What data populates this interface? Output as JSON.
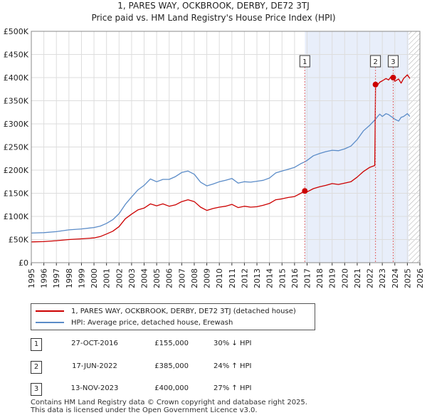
{
  "title_line1": "1, PARES WAY, OCKBROOK, DERBY, DE72 3TJ",
  "title_line2": "Price paid vs. HM Land Registry's House Price Index (HPI)",
  "chart_data": {
    "type": "line",
    "title": "Price paid vs. HM Land Registry's House Price Index (HPI)",
    "xlabel": "",
    "ylabel": "",
    "xlim": [
      1995,
      2026
    ],
    "ylim": [
      0,
      500000
    ],
    "y_ticks": [
      0,
      50000,
      100000,
      150000,
      200000,
      250000,
      300000,
      350000,
      400000,
      450000,
      500000
    ],
    "y_tick_labels": [
      "£0",
      "£50K",
      "£100K",
      "£150K",
      "£200K",
      "£250K",
      "£300K",
      "£350K",
      "£400K",
      "£450K",
      "£500K"
    ],
    "x_ticks": [
      1995,
      1996,
      1997,
      1998,
      1999,
      2000,
      2001,
      2002,
      2003,
      2004,
      2005,
      2006,
      2007,
      2008,
      2009,
      2010,
      2011,
      2012,
      2013,
      2014,
      2015,
      2016,
      2017,
      2018,
      2019,
      2020,
      2021,
      2022,
      2023,
      2024,
      2025,
      2026
    ],
    "x_tick_labels": [
      "1995",
      "1996",
      "1997",
      "1998",
      "1999",
      "2000",
      "2001",
      "2002",
      "2003",
      "2004",
      "2005",
      "2006",
      "2007",
      "2008",
      "2009",
      "2010",
      "2011",
      "2012",
      "2013",
      "2014",
      "2015",
      "2016",
      "2017",
      "2018",
      "2019",
      "2020",
      "2021",
      "2022",
      "2023",
      "2024",
      "2025",
      "2026"
    ],
    "grid": true,
    "shaded_region": {
      "from": 2016.82,
      "to": 2025.1
    },
    "hatched_region": {
      "from": 2025.1,
      "to": 2026
    },
    "series": [
      {
        "name": "1, PARES WAY, OCKBROOK, DERBY, DE72 3TJ (detached house)",
        "color": "#cc0000",
        "x": [
          1995.0,
          1996.0,
          1997.0,
          1998.0,
          1999.0,
          2000.0,
          2000.5,
          2001.0,
          2001.5,
          2002.0,
          2002.5,
          2003.0,
          2003.5,
          2004.0,
          2004.5,
          2005.0,
          2005.5,
          2006.0,
          2006.5,
          2007.0,
          2007.5,
          2008.0,
          2008.5,
          2009.0,
          2009.5,
          2010.0,
          2010.5,
          2011.0,
          2011.5,
          2012.0,
          2012.5,
          2013.0,
          2013.5,
          2014.0,
          2014.5,
          2015.0,
          2015.5,
          2016.0,
          2016.5,
          2016.82,
          2017.0,
          2017.5,
          2018.0,
          2018.5,
          2019.0,
          2019.5,
          2020.0,
          2020.5,
          2021.0,
          2021.5,
          2022.0,
          2022.4,
          2022.46,
          2022.6,
          2022.8,
          2023.0,
          2023.3,
          2023.5,
          2023.7,
          2023.87,
          2024.0,
          2024.3,
          2024.5,
          2024.7,
          2025.0,
          2025.2
        ],
        "values": [
          45000,
          45500,
          47500,
          50000,
          51500,
          53500,
          56500,
          62000,
          68000,
          78000,
          95000,
          105000,
          114000,
          118000,
          127000,
          123000,
          127000,
          122000,
          125000,
          132000,
          136000,
          132000,
          120000,
          113000,
          117000,
          120000,
          122000,
          126000,
          119000,
          122000,
          120000,
          121000,
          124000,
          128000,
          136000,
          138000,
          141000,
          143000,
          150000,
          155000,
          153000,
          160000,
          164000,
          167000,
          171000,
          169000,
          172000,
          175000,
          185000,
          197000,
          206000,
          210000,
          385000,
          383000,
          390000,
          393000,
          398000,
          395000,
          402000,
          400000,
          392000,
          397000,
          388000,
          398000,
          406000,
          398000
        ]
      },
      {
        "name": "HPI: Average price, detached house, Erewash",
        "color": "#5b8cc8",
        "x": [
          1995.0,
          1996.0,
          1997.0,
          1998.0,
          1999.0,
          2000.0,
          2000.5,
          2001.0,
          2001.5,
          2002.0,
          2002.5,
          2003.0,
          2003.5,
          2004.0,
          2004.5,
          2005.0,
          2005.5,
          2006.0,
          2006.5,
          2007.0,
          2007.5,
          2008.0,
          2008.5,
          2009.0,
          2009.5,
          2010.0,
          2010.5,
          2011.0,
          2011.5,
          2012.0,
          2012.5,
          2013.0,
          2013.5,
          2014.0,
          2014.5,
          2015.0,
          2015.5,
          2016.0,
          2016.5,
          2016.82,
          2017.0,
          2017.5,
          2018.0,
          2018.5,
          2019.0,
          2019.5,
          2020.0,
          2020.5,
          2021.0,
          2021.5,
          2022.0,
          2022.46,
          2022.6,
          2022.8,
          2023.0,
          2023.3,
          2023.5,
          2023.7,
          2023.87,
          2024.0,
          2024.3,
          2024.5,
          2024.7,
          2025.0,
          2025.2
        ],
        "values": [
          64000,
          65000,
          67000,
          71000,
          73000,
          76000,
          79000,
          85000,
          93000,
          106000,
          126000,
          142000,
          157000,
          167000,
          181000,
          175000,
          180000,
          180000,
          186000,
          195000,
          198000,
          191000,
          174000,
          166000,
          170000,
          175000,
          178000,
          182000,
          172000,
          175000,
          174000,
          176000,
          178000,
          183000,
          194000,
          198000,
          202000,
          206000,
          214000,
          218000,
          221000,
          231000,
          236000,
          240000,
          243000,
          242000,
          246000,
          252000,
          266000,
          285000,
          297000,
          310000,
          315000,
          321000,
          316000,
          322000,
          320000,
          316000,
          313000,
          310000,
          306000,
          314000,
          316000,
          322000,
          316000
        ]
      }
    ],
    "annotations": [
      {
        "label": "1",
        "x": 2016.82,
        "y": 155000
      },
      {
        "label": "2",
        "x": 2022.46,
        "y": 385000
      },
      {
        "label": "3",
        "x": 2023.87,
        "y": 400000
      }
    ]
  },
  "legend": {
    "property_label": "1, PARES WAY, OCKBROOK, DERBY, DE72 3TJ (detached house)",
    "hpi_label": "HPI: Average price, detached house, Erewash"
  },
  "transactions": [
    {
      "label": "1",
      "date": "27-OCT-2016",
      "price": "£155,000",
      "hpi": "30% ↓ HPI"
    },
    {
      "label": "2",
      "date": "17-JUN-2022",
      "price": "£385,000",
      "hpi": "24% ↑ HPI"
    },
    {
      "label": "3",
      "date": "13-NOV-2023",
      "price": "£400,000",
      "hpi": "27% ↑ HPI"
    }
  ],
  "footer": {
    "line1": "Contains HM Land Registry data © Crown copyright and database right 2025.",
    "line2": "This data is licensed under the Open Government Licence v3.0."
  },
  "colors": {
    "property": "#cc0000",
    "hpi": "#5b8cc8",
    "shade": "#e8eefa"
  }
}
